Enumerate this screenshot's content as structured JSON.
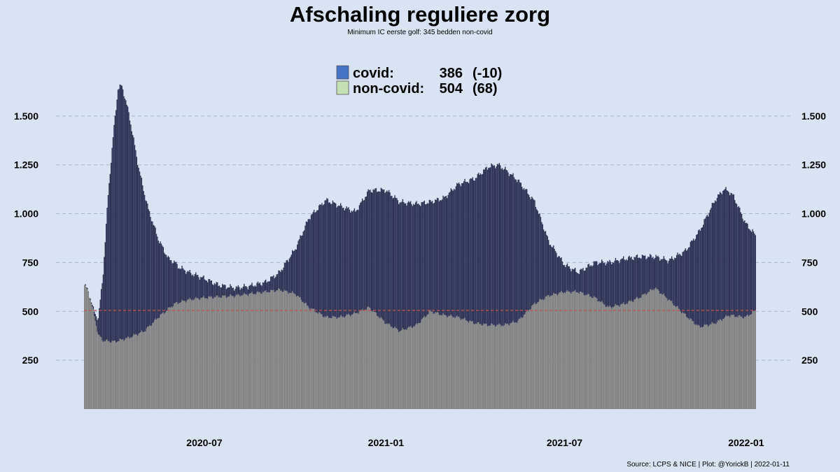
{
  "chart_data": {
    "type": "bar",
    "stacked": true,
    "title": "Afschaling reguliere zorg",
    "subtitle": "Minimum IC eerste golf: 345 bedden non-covid",
    "caption": "Source: LCPS & NICE | Plot: @YorickB |  2022-01-11",
    "x_range": [
      "2020-03-01",
      "2022-01-11"
    ],
    "ylim": [
      0,
      1800
    ],
    "y_ticks": [
      {
        "value": 250,
        "label": "250"
      },
      {
        "value": 500,
        "label": "500"
      },
      {
        "value": 750,
        "label": "750"
      },
      {
        "value": 1000,
        "label": "1.000"
      },
      {
        "value": 1250,
        "label": "1.250"
      },
      {
        "value": 1500,
        "label": "1.500"
      }
    ],
    "x_ticks": [
      {
        "value": "2020-07-01",
        "label": "2020-07"
      },
      {
        "value": "2021-01-01",
        "label": "2021-01"
      },
      {
        "value": "2021-07-01",
        "label": "2021-07"
      },
      {
        "value": "2022-01-01",
        "label": "2022-01"
      }
    ],
    "reference_line": {
      "value": 505,
      "color": "#c0504d"
    },
    "grid": true,
    "legend": {
      "placement": "top-center",
      "entries": [
        {
          "label": "covid:",
          "value": "386",
          "change": "(-10)",
          "color": "#4472c4"
        },
        {
          "label": "non-covid:",
          "value": "504",
          "change": "(68)",
          "color": "#c5e0b4"
        }
      ]
    },
    "series": [
      {
        "name": "covid",
        "color": "#2f3254",
        "keypoints": [
          [
            "2020-03-01",
            0
          ],
          [
            "2020-03-10",
            10
          ],
          [
            "2020-03-15",
            80
          ],
          [
            "2020-03-20",
            350
          ],
          [
            "2020-03-25",
            750
          ],
          [
            "2020-03-31",
            1100
          ],
          [
            "2020-04-04",
            1290
          ],
          [
            "2020-04-08",
            1300
          ],
          [
            "2020-04-15",
            1150
          ],
          [
            "2020-04-25",
            850
          ],
          [
            "2020-05-05",
            600
          ],
          [
            "2020-05-15",
            400
          ],
          [
            "2020-05-25",
            260
          ],
          [
            "2020-06-05",
            180
          ],
          [
            "2020-06-15",
            140
          ],
          [
            "2020-06-30",
            100
          ],
          [
            "2020-07-15",
            60
          ],
          [
            "2020-08-01",
            40
          ],
          [
            "2020-08-15",
            40
          ],
          [
            "2020-09-01",
            50
          ],
          [
            "2020-09-15",
            90
          ],
          [
            "2020-10-01",
            230
          ],
          [
            "2020-10-15",
            460
          ],
          [
            "2020-11-01",
            600
          ],
          [
            "2020-11-15",
            570
          ],
          [
            "2020-12-01",
            520
          ],
          [
            "2020-12-15",
            600
          ],
          [
            "2021-01-01",
            680
          ],
          [
            "2021-01-15",
            660
          ],
          [
            "2021-02-01",
            620
          ],
          [
            "2021-02-15",
            560
          ],
          [
            "2021-03-01",
            600
          ],
          [
            "2021-03-15",
            680
          ],
          [
            "2021-04-01",
            740
          ],
          [
            "2021-04-15",
            810
          ],
          [
            "2021-04-25",
            820
          ],
          [
            "2021-05-01",
            800
          ],
          [
            "2021-05-15",
            720
          ],
          [
            "2021-06-01",
            520
          ],
          [
            "2021-06-15",
            280
          ],
          [
            "2021-07-01",
            140
          ],
          [
            "2021-07-15",
            100
          ],
          [
            "2021-08-01",
            180
          ],
          [
            "2021-08-15",
            230
          ],
          [
            "2021-09-01",
            230
          ],
          [
            "2021-09-15",
            210
          ],
          [
            "2021-10-01",
            160
          ],
          [
            "2021-10-15",
            200
          ],
          [
            "2021-11-01",
            330
          ],
          [
            "2021-11-15",
            490
          ],
          [
            "2021-12-01",
            630
          ],
          [
            "2021-12-10",
            660
          ],
          [
            "2021-12-20",
            610
          ],
          [
            "2022-01-01",
            480
          ],
          [
            "2022-01-11",
            386
          ]
        ]
      },
      {
        "name": "non-covid",
        "color": "#838383",
        "keypoints": [
          [
            "2020-03-01",
            635
          ],
          [
            "2020-03-05",
            600
          ],
          [
            "2020-03-10",
            500
          ],
          [
            "2020-03-15",
            380
          ],
          [
            "2020-03-20",
            350
          ],
          [
            "2020-04-01",
            345
          ],
          [
            "2020-04-15",
            365
          ],
          [
            "2020-05-01",
            400
          ],
          [
            "2020-05-15",
            470
          ],
          [
            "2020-06-01",
            540
          ],
          [
            "2020-06-15",
            560
          ],
          [
            "2020-07-01",
            570
          ],
          [
            "2020-08-01",
            580
          ],
          [
            "2020-09-01",
            600
          ],
          [
            "2020-09-15",
            610
          ],
          [
            "2020-10-01",
            590
          ],
          [
            "2020-10-15",
            520
          ],
          [
            "2020-11-01",
            470
          ],
          [
            "2020-11-15",
            470
          ],
          [
            "2020-12-01",
            490
          ],
          [
            "2020-12-15",
            520
          ],
          [
            "2021-01-01",
            440
          ],
          [
            "2021-01-15",
            400
          ],
          [
            "2021-02-01",
            430
          ],
          [
            "2021-02-15",
            500
          ],
          [
            "2021-03-01",
            480
          ],
          [
            "2021-03-15",
            470
          ],
          [
            "2021-04-01",
            440
          ],
          [
            "2021-04-15",
            430
          ],
          [
            "2021-05-01",
            430
          ],
          [
            "2021-05-15",
            450
          ],
          [
            "2021-06-01",
            540
          ],
          [
            "2021-06-15",
            580
          ],
          [
            "2021-07-01",
            600
          ],
          [
            "2021-07-15",
            600
          ],
          [
            "2021-08-01",
            570
          ],
          [
            "2021-08-15",
            520
          ],
          [
            "2021-09-01",
            540
          ],
          [
            "2021-09-15",
            570
          ],
          [
            "2021-10-01",
            620
          ],
          [
            "2021-10-15",
            560
          ],
          [
            "2021-11-01",
            480
          ],
          [
            "2021-11-15",
            420
          ],
          [
            "2021-12-01",
            440
          ],
          [
            "2021-12-15",
            480
          ],
          [
            "2022-01-01",
            470
          ],
          [
            "2022-01-11",
            504
          ]
        ]
      }
    ]
  }
}
